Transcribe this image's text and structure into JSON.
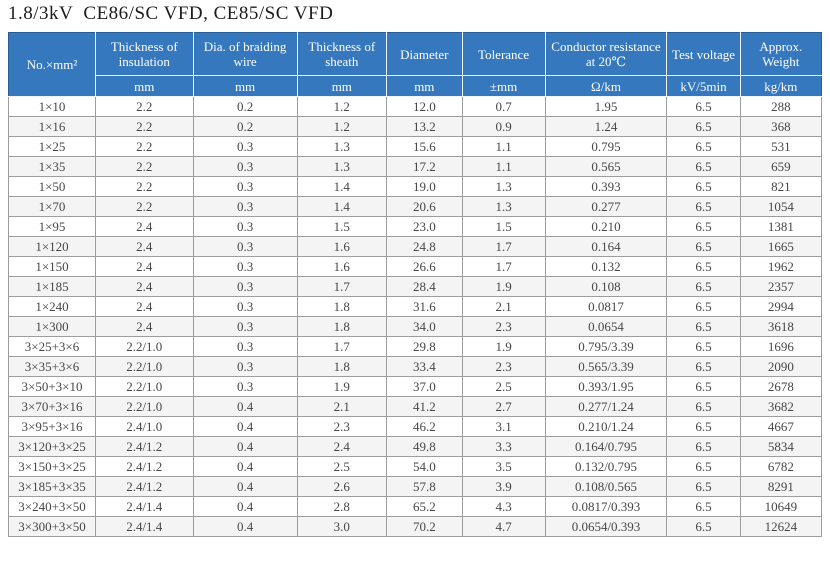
{
  "title": "1.8/3kV  CE86/SC VFD, CE85/SC VFD",
  "colors": {
    "header_bg": "#3578bd",
    "header_text": "#ffffff",
    "row_alt_bg": "#f4f4f4",
    "grid_border": "#9d9d9d",
    "body_text": "#474747"
  },
  "table": {
    "columns": [
      {
        "label": "No.×mm²",
        "unit": ""
      },
      {
        "label": "Thickness of insulation",
        "unit": "mm"
      },
      {
        "label": "Dia. of braiding wire",
        "unit": "mm"
      },
      {
        "label": "Thickness of sheath",
        "unit": "mm"
      },
      {
        "label": "Diameter",
        "unit": "mm"
      },
      {
        "label": "Tolerance",
        "unit": "±mm"
      },
      {
        "label": "Conductor resistance at 20℃",
        "unit": "Ω/km"
      },
      {
        "label": "Test voltage",
        "unit": "kV/5min"
      },
      {
        "label": "Approx. Weight",
        "unit": "kg/km"
      }
    ],
    "rows": [
      [
        "1×10",
        "2.2",
        "0.2",
        "1.2",
        "12.0",
        "0.7",
        "1.95",
        "6.5",
        "288"
      ],
      [
        "1×16",
        "2.2",
        "0.2",
        "1.2",
        "13.2",
        "0.9",
        "1.24",
        "6.5",
        "368"
      ],
      [
        "1×25",
        "2.2",
        "0.3",
        "1.3",
        "15.6",
        "1.1",
        "0.795",
        "6.5",
        "531"
      ],
      [
        "1×35",
        "2.2",
        "0.3",
        "1.3",
        "17.2",
        "1.1",
        "0.565",
        "6.5",
        "659"
      ],
      [
        "1×50",
        "2.2",
        "0.3",
        "1.4",
        "19.0",
        "1.3",
        "0.393",
        "6.5",
        "821"
      ],
      [
        "1×70",
        "2.2",
        "0.3",
        "1.4",
        "20.6",
        "1.3",
        "0.277",
        "6.5",
        "1054"
      ],
      [
        "1×95",
        "2.4",
        "0.3",
        "1.5",
        "23.0",
        "1.5",
        "0.210",
        "6.5",
        "1381"
      ],
      [
        "1×120",
        "2.4",
        "0.3",
        "1.6",
        "24.8",
        "1.7",
        "0.164",
        "6.5",
        "1665"
      ],
      [
        "1×150",
        "2.4",
        "0.3",
        "1.6",
        "26.6",
        "1.7",
        "0.132",
        "6.5",
        "1962"
      ],
      [
        "1×185",
        "2.4",
        "0.3",
        "1.7",
        "28.4",
        "1.9",
        "0.108",
        "6.5",
        "2357"
      ],
      [
        "1×240",
        "2.4",
        "0.3",
        "1.8",
        "31.6",
        "2.1",
        "0.0817",
        "6.5",
        "2994"
      ],
      [
        "1×300",
        "2.4",
        "0.3",
        "1.8",
        "34.0",
        "2.3",
        "0.0654",
        "6.5",
        "3618"
      ],
      [
        "3×25+3×6",
        "2.2/1.0",
        "0.3",
        "1.7",
        "29.8",
        "1.9",
        "0.795/3.39",
        "6.5",
        "1696"
      ],
      [
        "3×35+3×6",
        "2.2/1.0",
        "0.3",
        "1.8",
        "33.4",
        "2.3",
        "0.565/3.39",
        "6.5",
        "2090"
      ],
      [
        "3×50+3×10",
        "2.2/1.0",
        "0.3",
        "1.9",
        "37.0",
        "2.5",
        "0.393/1.95",
        "6.5",
        "2678"
      ],
      [
        "3×70+3×16",
        "2.2/1.0",
        "0.4",
        "2.1",
        "41.2",
        "2.7",
        "0.277/1.24",
        "6.5",
        "3682"
      ],
      [
        "3×95+3×16",
        "2.4/1.0",
        "0.4",
        "2.3",
        "46.2",
        "3.1",
        "0.210/1.24",
        "6.5",
        "4667"
      ],
      [
        "3×120+3×25",
        "2.4/1.2",
        "0.4",
        "2.4",
        "49.8",
        "3.3",
        "0.164/0.795",
        "6.5",
        "5834"
      ],
      [
        "3×150+3×25",
        "2.4/1.2",
        "0.4",
        "2.5",
        "54.0",
        "3.5",
        "0.132/0.795",
        "6.5",
        "6782"
      ],
      [
        "3×185+3×35",
        "2.4/1.2",
        "0.4",
        "2.6",
        "57.8",
        "3.9",
        "0.108/0.565",
        "6.5",
        "8291"
      ],
      [
        "3×240+3×50",
        "2.4/1.4",
        "0.4",
        "2.8",
        "65.2",
        "4.3",
        "0.0817/0.393",
        "6.5",
        "10649"
      ],
      [
        "3×300+3×50",
        "2.4/1.4",
        "0.4",
        "3.0",
        "70.2",
        "4.7",
        "0.0654/0.393",
        "6.5",
        "12624"
      ]
    ]
  }
}
